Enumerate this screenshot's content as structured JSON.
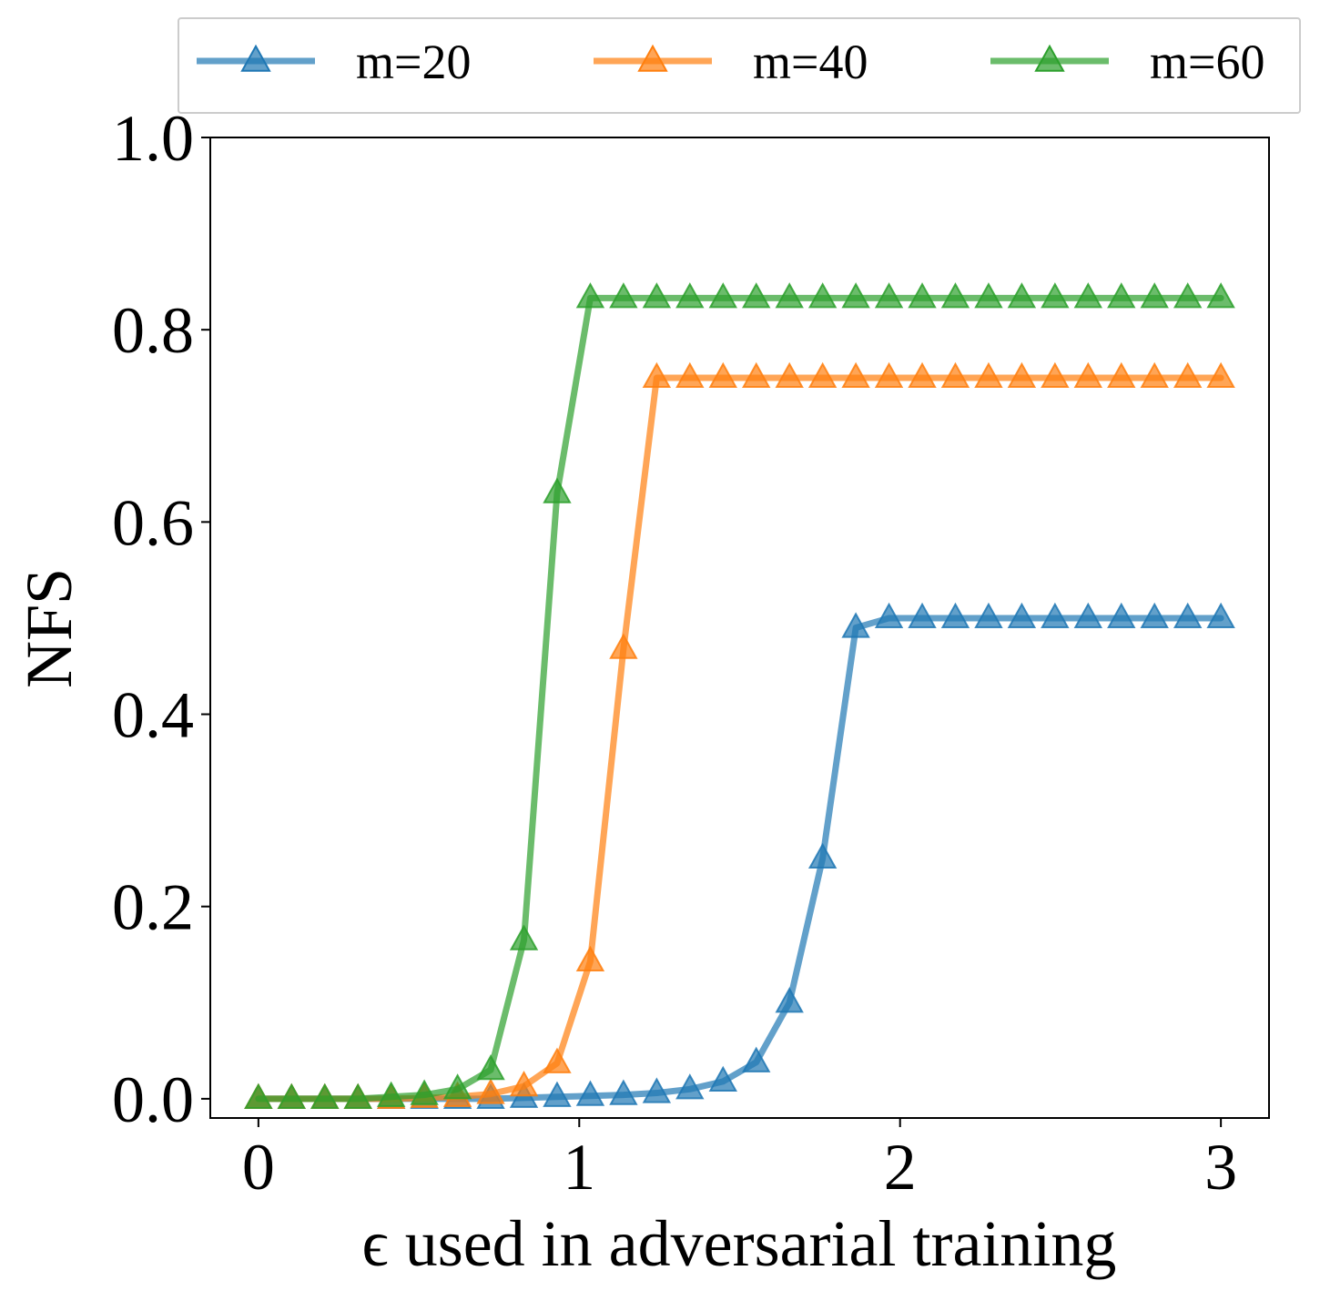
{
  "chart_data": {
    "type": "line",
    "xlabel": "ϵ used in adversarial training",
    "ylabel": "NFS",
    "xlim": [
      -0.15,
      3.15
    ],
    "ylim": [
      -0.02,
      1.0
    ],
    "xticks": [
      0,
      1,
      2,
      3
    ],
    "xtick_labels": [
      "0",
      "1",
      "2",
      "3"
    ],
    "yticks": [
      0.0,
      0.2,
      0.4,
      0.6,
      0.8,
      1.0
    ],
    "ytick_labels": [
      "0.0",
      "0.2",
      "0.4",
      "0.6",
      "0.8",
      "1.0"
    ],
    "grid": false,
    "legend_position": "top, above plot",
    "marker": "triangle-up",
    "x": [
      0,
      0.1034,
      0.2069,
      0.3103,
      0.4138,
      0.5172,
      0.6207,
      0.7241,
      0.8276,
      0.931,
      1.0345,
      1.1379,
      1.2414,
      1.3448,
      1.4483,
      1.5517,
      1.6552,
      1.7586,
      1.8621,
      1.9655,
      2.069,
      2.1724,
      2.2759,
      2.3793,
      2.4828,
      2.5862,
      2.6897,
      2.7931,
      2.8966,
      3.0
    ],
    "series": [
      {
        "name": "m=20",
        "color": "#1f77b4",
        "values": [
          0,
          0,
          0,
          0,
          0,
          0,
          0,
          0,
          0.001,
          0.002,
          0.003,
          0.004,
          0.006,
          0.01,
          0.018,
          0.038,
          0.1,
          0.25,
          0.49,
          0.5,
          0.5,
          0.5,
          0.5,
          0.5,
          0.5,
          0.5,
          0.5,
          0.5,
          0.5,
          0.5
        ]
      },
      {
        "name": "m=40",
        "color": "#ff7f0e",
        "values": [
          0,
          0,
          0,
          0,
          0,
          0.001,
          0.002,
          0.005,
          0.013,
          0.037,
          0.143,
          0.468,
          0.75,
          0.75,
          0.75,
          0.75,
          0.75,
          0.75,
          0.75,
          0.75,
          0.75,
          0.75,
          0.75,
          0.75,
          0.75,
          0.75,
          0.75,
          0.75,
          0.75,
          0.75
        ]
      },
      {
        "name": "m=60",
        "color": "#2ca02c",
        "values": [
          0,
          0,
          0,
          0,
          0.002,
          0.004,
          0.01,
          0.03,
          0.165,
          0.63,
          0.833,
          0.833,
          0.833,
          0.833,
          0.833,
          0.833,
          0.833,
          0.833,
          0.833,
          0.833,
          0.833,
          0.833,
          0.833,
          0.833,
          0.833,
          0.833,
          0.833,
          0.833,
          0.833,
          0.833
        ]
      }
    ]
  }
}
